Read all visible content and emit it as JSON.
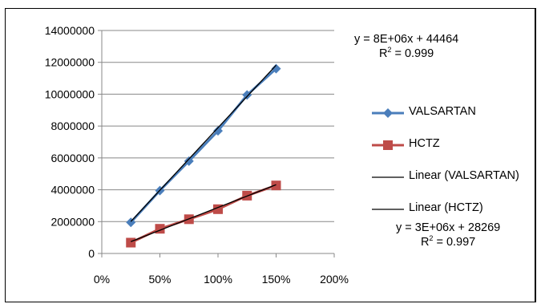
{
  "chart_data": {
    "type": "scatter",
    "title": "",
    "xlabel": "",
    "ylabel": "",
    "xlim": [
      0,
      2
    ],
    "ylim": [
      0,
      14000000
    ],
    "x_ticks": [
      "0%",
      "50%",
      "100%",
      "150%",
      "200%"
    ],
    "y_ticks": [
      "0",
      "2000000",
      "4000000",
      "6000000",
      "8000000",
      "10000000",
      "12000000",
      "14000000"
    ],
    "grid": "horizontal",
    "legend_position": "right",
    "series": [
      {
        "name": "VALSARTAN",
        "color": "#4A7EBB",
        "marker": "diamond",
        "x": [
          0.25,
          0.5,
          0.75,
          1.0,
          1.25,
          1.5
        ],
        "y": [
          1950000,
          3950000,
          5800000,
          7700000,
          9950000,
          11600000
        ]
      },
      {
        "name": "HCTZ",
        "color": "#BE4B48",
        "marker": "square",
        "x": [
          0.25,
          0.5,
          0.75,
          1.0,
          1.25,
          1.5
        ],
        "y": [
          680000,
          1550000,
          2150000,
          2780000,
          3630000,
          4270000
        ]
      }
    ],
    "trendlines": [
      {
        "name": "Linear (VALSARTAN)",
        "color": "#000000",
        "slope": 7850000,
        "intercept": 44464,
        "x_range": [
          0.25,
          1.5
        ],
        "equation": "y = 8E+06x + 44464",
        "r2_label": "R",
        "r2_value": " = 0.999"
      },
      {
        "name": "Linear (HCTZ)",
        "color": "#000000",
        "slope": 2860000,
        "intercept": 28269,
        "x_range": [
          0.25,
          1.5
        ],
        "equation": "y = 3E+06x + 28269",
        "r2_label": "R",
        "r2_value": " = 0.997"
      }
    ]
  }
}
